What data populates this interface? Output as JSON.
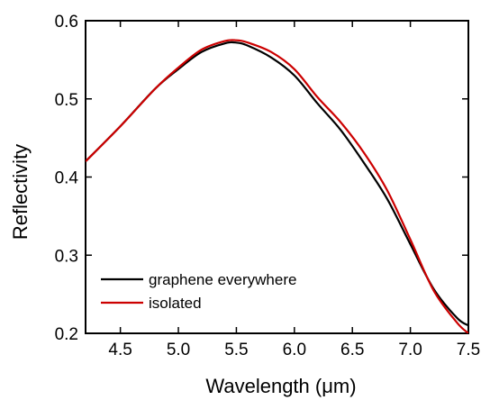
{
  "chart_data": {
    "type": "line",
    "title": "",
    "xlabel": "Wavelength (μm)",
    "ylabel": "Reflectivity",
    "xlim": [
      4.2,
      7.5
    ],
    "ylim": [
      0.2,
      0.6
    ],
    "xticks": [
      4.5,
      5.0,
      5.5,
      6.0,
      6.5,
      7.0,
      7.5
    ],
    "xtick_labels": [
      "4.5",
      "5.0",
      "5.5",
      "6.0",
      "6.5",
      "7.0",
      "7.5"
    ],
    "yticks": [
      0.2,
      0.3,
      0.4,
      0.5,
      0.6
    ],
    "ytick_labels": [
      "0.2",
      "0.3",
      "0.4",
      "0.5",
      "0.6"
    ],
    "grid": false,
    "legend_position": "bottom-left",
    "series": [
      {
        "name": "graphene everywhere",
        "color": "#000000",
        "x": [
          4.2,
          4.5,
          4.8,
          5.0,
          5.2,
          5.4,
          5.5,
          5.6,
          5.8,
          6.0,
          6.2,
          6.4,
          6.6,
          6.8,
          7.0,
          7.2,
          7.4,
          7.5
        ],
        "y": [
          0.42,
          0.465,
          0.513,
          0.538,
          0.56,
          0.571,
          0.572,
          0.568,
          0.553,
          0.53,
          0.494,
          0.46,
          0.418,
          0.372,
          0.314,
          0.257,
          0.22,
          0.21
        ]
      },
      {
        "name": "isolated",
        "color": "#cc0000",
        "x": [
          4.2,
          4.5,
          4.8,
          5.0,
          5.2,
          5.4,
          5.5,
          5.6,
          5.8,
          6.0,
          6.2,
          6.4,
          6.6,
          6.8,
          7.0,
          7.2,
          7.4,
          7.5
        ],
        "y": [
          0.42,
          0.465,
          0.513,
          0.54,
          0.563,
          0.574,
          0.575,
          0.572,
          0.56,
          0.538,
          0.502,
          0.47,
          0.431,
          0.383,
          0.32,
          0.255,
          0.214,
          0.2
        ]
      }
    ]
  }
}
